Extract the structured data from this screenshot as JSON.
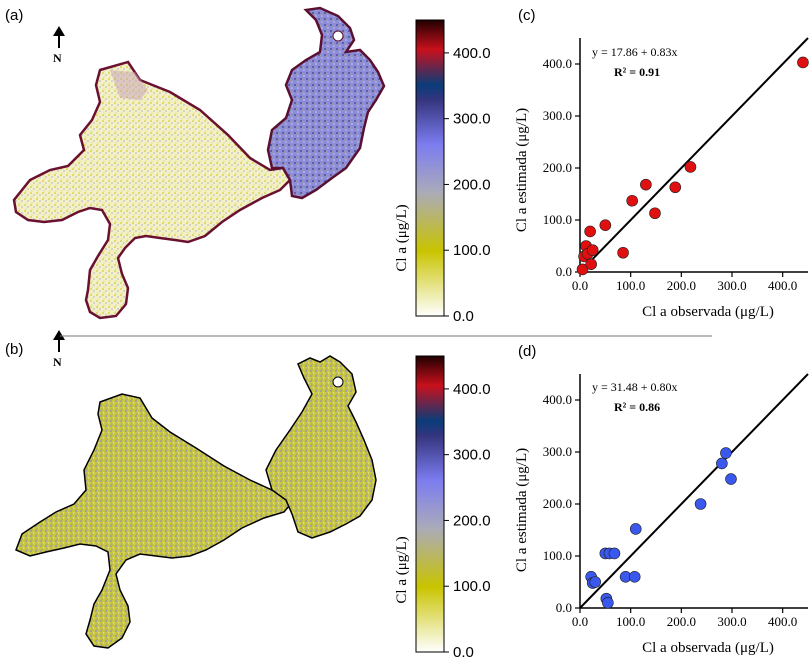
{
  "panels": {
    "a": "(a)",
    "b": "(b)",
    "c": "(c)",
    "d": "(d)"
  },
  "north_label": "N",
  "colorbar": {
    "label": "Cl a (μg/L)",
    "ticks": [
      "400.0",
      "300.0",
      "200.0",
      "100.0",
      "0.0"
    ],
    "tick_values": [
      400,
      300,
      200,
      100,
      0
    ],
    "range": [
      0,
      450
    ],
    "colors": [
      "#ffffff",
      "#c9c400",
      "#aaaabb",
      "#7c7cf0",
      "#35357f",
      "#0a3c7a",
      "#c9101c",
      "#200000"
    ]
  },
  "chart_data": [
    {
      "type": "scatter",
      "panel": "c",
      "xlabel": "Cl a observada (μg/L)",
      "ylabel": "Cl a estimada (μg/L)",
      "xlim": [
        0,
        450
      ],
      "ylim": [
        0,
        450
      ],
      "x_ticks": [
        "0.0",
        "100.0",
        "200.0",
        "300.0",
        "400.0"
      ],
      "y_ticks": [
        "0.0",
        "100.0",
        "200.0",
        "300.0",
        "400.0"
      ],
      "equation": "y = 17.86 + 0.83x",
      "r2": "R² = 0.91",
      "point_color": "#e01010",
      "points": [
        {
          "x": 5,
          "y": 5
        },
        {
          "x": 8,
          "y": 30
        },
        {
          "x": 12,
          "y": 50
        },
        {
          "x": 15,
          "y": 35
        },
        {
          "x": 20,
          "y": 78
        },
        {
          "x": 25,
          "y": 42
        },
        {
          "x": 22,
          "y": 15
        },
        {
          "x": 50,
          "y": 90
        },
        {
          "x": 85,
          "y": 37
        },
        {
          "x": 103,
          "y": 137
        },
        {
          "x": 130,
          "y": 168
        },
        {
          "x": 148,
          "y": 113
        },
        {
          "x": 188,
          "y": 163
        },
        {
          "x": 218,
          "y": 202
        },
        {
          "x": 440,
          "y": 403
        }
      ]
    },
    {
      "type": "scatter",
      "panel": "d",
      "xlabel": "Cl a observada (μg/L)",
      "ylabel": "Cl a estimada (μg/L)",
      "xlim": [
        0,
        450
      ],
      "ylim": [
        0,
        450
      ],
      "x_ticks": [
        "0.0",
        "100.0",
        "200.0",
        "300.0",
        "400.0"
      ],
      "y_ticks": [
        "0.0",
        "100.0",
        "200.0",
        "300.0",
        "400.0"
      ],
      "equation": "y = 31.48 + 0.80x",
      "r2": "R² = 0.86",
      "point_color": "#3a58ee",
      "points": [
        {
          "x": 22,
          "y": 60
        },
        {
          "x": 25,
          "y": 48
        },
        {
          "x": 30,
          "y": 50
        },
        {
          "x": 50,
          "y": 105
        },
        {
          "x": 58,
          "y": 105
        },
        {
          "x": 68,
          "y": 105
        },
        {
          "x": 52,
          "y": 18
        },
        {
          "x": 55,
          "y": 10
        },
        {
          "x": 90,
          "y": 60
        },
        {
          "x": 108,
          "y": 60
        },
        {
          "x": 110,
          "y": 152
        },
        {
          "x": 238,
          "y": 200
        },
        {
          "x": 280,
          "y": 278
        },
        {
          "x": 288,
          "y": 298
        },
        {
          "x": 298,
          "y": 248
        }
      ]
    }
  ]
}
